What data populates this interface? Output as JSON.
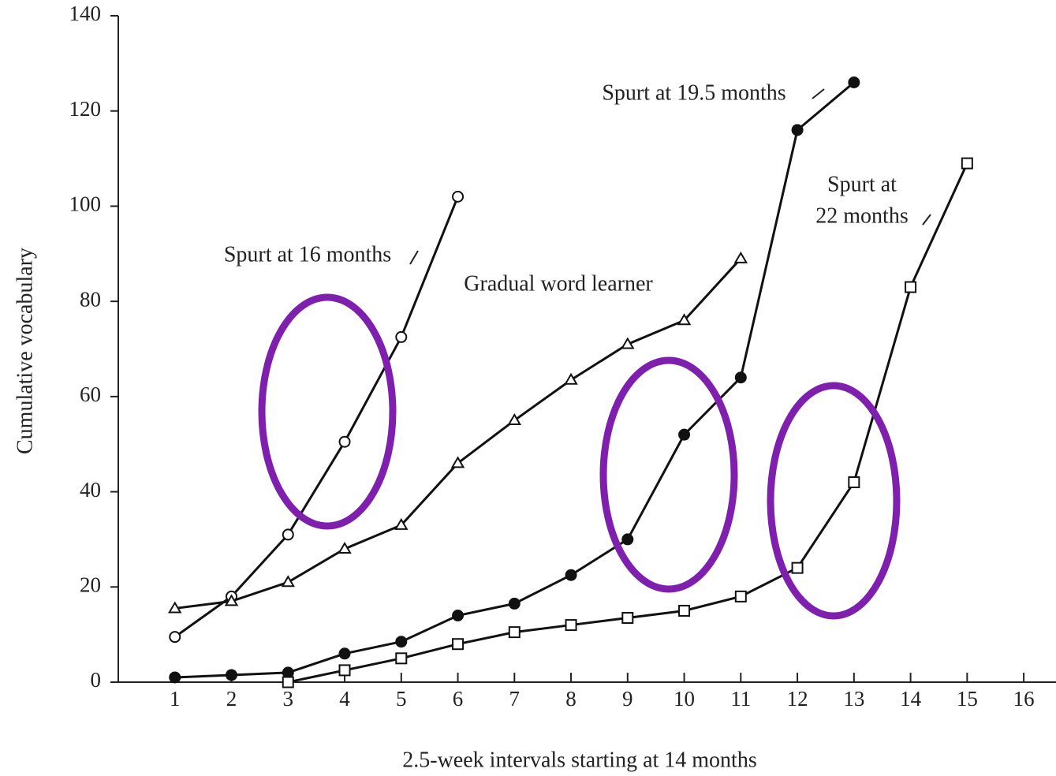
{
  "chart_data": {
    "type": "line",
    "x_label": "2.5-week intervals starting at 14 months",
    "y_label": "Cumulative vocabulary",
    "x": [
      1,
      2,
      3,
      4,
      5,
      6,
      7,
      8,
      9,
      10,
      11,
      12,
      13,
      14,
      15
    ],
    "series": [
      {
        "name": "Spurt at 16 months",
        "color": "#111111",
        "marker": "circle-open",
        "values": [
          9.5,
          18,
          31,
          50.5,
          72.5,
          102,
          null,
          null,
          null,
          null,
          null,
          null,
          null,
          null,
          null
        ]
      },
      {
        "name": "Gradual word learner",
        "color": "#111111",
        "marker": "triangle-open",
        "values": [
          15.5,
          17,
          21,
          28,
          33,
          46,
          55,
          63.5,
          71,
          76,
          89,
          null,
          null,
          null,
          null
        ]
      },
      {
        "name": "Spurt at 19.5 months",
        "color": "#111111",
        "marker": "circle-filled",
        "values": [
          1,
          1.5,
          2,
          6,
          8.5,
          14,
          16.5,
          22.5,
          30,
          52,
          64,
          116,
          126,
          null,
          null
        ]
      },
      {
        "name": "Spurt at 22 months",
        "color": "#111111",
        "marker": "square-open",
        "values": [
          null,
          null,
          0,
          2.5,
          5,
          8,
          10.5,
          12,
          13.5,
          15,
          18,
          24,
          42,
          83,
          109
        ]
      }
    ],
    "annotations": [
      {
        "lines": [
          "Spurt at 16 months"
        ]
      },
      {
        "lines": [
          "Gradual word learner"
        ]
      },
      {
        "lines": [
          "Spurt at 19.5 months"
        ]
      },
      {
        "lines": [
          "Spurt at",
          "22 months"
        ]
      }
    ],
    "xlim": [
      0,
      16.57
    ],
    "ylim": [
      0,
      140
    ],
    "xticks": [
      1,
      2,
      3,
      4,
      5,
      6,
      7,
      8,
      9,
      10,
      11,
      12,
      13,
      14,
      15,
      16
    ],
    "yticks": [
      0,
      20,
      40,
      60,
      80,
      100,
      120,
      140
    ],
    "grid": false
  }
}
